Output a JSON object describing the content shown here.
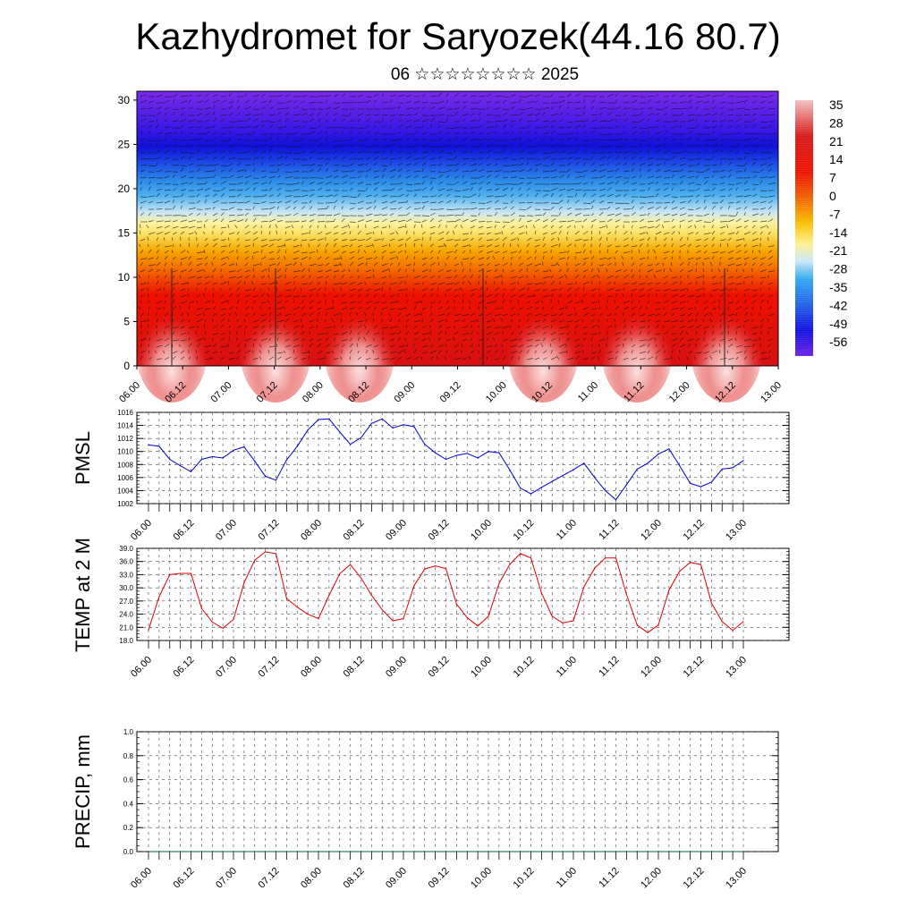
{
  "title": "Kazhydromet for Saryozek(44.16 80.7)",
  "subtitle": "06 ☆☆☆☆☆☆☆☆ 2025",
  "time_labels": [
    "06.00",
    "06.12",
    "07.00",
    "07.12",
    "08.00",
    "08.12",
    "09.00",
    "09.12",
    "10.00",
    "10.12",
    "11.00",
    "11.12",
    "12.00",
    "12.12",
    "13.00"
  ],
  "colors": {
    "pmsl_line": "#0000cc",
    "temp_line": "#dd0000",
    "precip_line": "#006633",
    "colorbar_top": "#f2c0c0",
    "colorbar_bottom": "#6a20e8"
  },
  "chart_data": [
    {
      "type": "heatmap",
      "title": "",
      "ylim": [
        0,
        31
      ],
      "y_ticks": [
        "0",
        "5",
        "10",
        "15",
        "20",
        "25",
        "30"
      ],
      "x_ticks": [
        "06.00",
        "06.12",
        "07.00",
        "07.12",
        "08.00",
        "08.12",
        "09.00",
        "09.12",
        "10.00",
        "10.12",
        "11.00",
        "11.12",
        "12.00",
        "12.12",
        "13.00"
      ],
      "colorbar_labels": [
        "35",
        "28",
        "21",
        "14",
        "7",
        "0",
        "-7",
        "-14",
        "-21",
        "-28",
        "-35",
        "-42",
        "-49",
        "-56"
      ],
      "colorbar_range": [
        -56,
        35
      ],
      "overlay": "wind barbs"
    },
    {
      "type": "line",
      "ylabel": "PMSL",
      "ylim": [
        1002,
        1016
      ],
      "y_ticks": [
        "1016",
        "1014",
        "1012",
        "1010",
        "1008",
        "1006",
        "1004",
        "1002"
      ],
      "x_ticks": [
        "06.00",
        "06.12",
        "07.00",
        "07.12",
        "08.00",
        "08.12",
        "09.00",
        "09.12",
        "10.00",
        "10.12",
        "11.00",
        "11.12",
        "12.00",
        "12.12",
        "13.00"
      ],
      "grid": true,
      "x": [
        0,
        1,
        2,
        3,
        4,
        5,
        6,
        7,
        8,
        9,
        10,
        11,
        12,
        13,
        14,
        15,
        16,
        17,
        18,
        19,
        20,
        21,
        22,
        23,
        24,
        25,
        26,
        27,
        28,
        29,
        30,
        31,
        32,
        33,
        34,
        35,
        36,
        37,
        38,
        39,
        40,
        41,
        42,
        43,
        44,
        45,
        46,
        47,
        48,
        49,
        50,
        51,
        52,
        53,
        54,
        55,
        56
      ],
      "values": [
        1011,
        1010.8,
        1008.8,
        1007.8,
        1006.9,
        1008.8,
        1009.2,
        1009,
        1010.2,
        1010.7,
        1008.5,
        1006.2,
        1005.6,
        1008.7,
        1010.8,
        1013.3,
        1014.9,
        1015,
        1013,
        1011.1,
        1012.1,
        1014.3,
        1015,
        1013.6,
        1014.1,
        1013.8,
        1011.1,
        1009.8,
        1008.8,
        1009.4,
        1009.7,
        1009,
        1010,
        1009.8,
        1007.2,
        1004.4,
        1003.5,
        1004.5,
        1005.4,
        1006.3,
        1007.2,
        1008.2,
        1006,
        1004,
        1002.6,
        1004.9,
        1007.3,
        1008.2,
        1009.6,
        1010.4,
        1007.8,
        1005.1,
        1004.6,
        1005.3,
        1007.3,
        1007.5,
        1008.6
      ]
    },
    {
      "type": "line",
      "ylabel": "TEMP at 2 M",
      "ylim": [
        18,
        39
      ],
      "y_ticks": [
        "39.0",
        "36.0",
        "33.0",
        "30.0",
        "27.0",
        "24.0",
        "21.0",
        "18.0"
      ],
      "x_ticks": [
        "06.00",
        "06.12",
        "07.00",
        "07.12",
        "08.00",
        "08.12",
        "09.00",
        "09.12",
        "10.00",
        "10.12",
        "11.00",
        "11.12",
        "12.00",
        "12.12",
        "13.00"
      ],
      "grid": true,
      "x": [
        0,
        1,
        2,
        3,
        4,
        5,
        6,
        7,
        8,
        9,
        10,
        11,
        12,
        13,
        14,
        15,
        16,
        17,
        18,
        19,
        20,
        21,
        22,
        23,
        24,
        25,
        26,
        27,
        28,
        29,
        30,
        31,
        32,
        33,
        34,
        35,
        36,
        37,
        38,
        39,
        40,
        41,
        42,
        43,
        44,
        45,
        46,
        47,
        48,
        49,
        50,
        51,
        52,
        53,
        54,
        55,
        56
      ],
      "values": [
        20.4,
        28,
        33,
        33.3,
        33.3,
        25.3,
        22.2,
        20.8,
        22.8,
        31.2,
        36.3,
        38.2,
        37.8,
        27.6,
        25.6,
        24,
        23,
        28.3,
        33.2,
        35.3,
        32.3,
        28.3,
        25,
        22.5,
        23,
        30.5,
        34.3,
        35,
        34.4,
        26.3,
        23.2,
        21.3,
        23.5,
        31,
        35.3,
        37.8,
        36.8,
        28.8,
        23.5,
        22,
        22.5,
        30.3,
        34.5,
        36.8,
        36.8,
        28.5,
        21.5,
        19.8,
        21.5,
        29.5,
        33.8,
        35.8,
        35.3,
        26.5,
        22.3,
        20.3,
        22.3
      ]
    },
    {
      "type": "line",
      "ylabel": "PRECIP, mm",
      "ylim": [
        0,
        1
      ],
      "y_ticks": [
        "1.0",
        "0.8",
        "0.6",
        "0.4",
        "0.2",
        "0.0"
      ],
      "x_ticks": [
        "06.00",
        "06.12",
        "07.00",
        "07.12",
        "08.00",
        "08.12",
        "09.00",
        "09.12",
        "10.00",
        "10.12",
        "11.00",
        "11.12",
        "12.00",
        "12.12",
        "13.00"
      ],
      "grid": true,
      "values": [
        0,
        0,
        0,
        0,
        0,
        0,
        0,
        0,
        0,
        0,
        0,
        0,
        0,
        0,
        0,
        0,
        0,
        0,
        0,
        0,
        0,
        0,
        0,
        0,
        0,
        0,
        0,
        0,
        0,
        0,
        0,
        0,
        0,
        0,
        0,
        0,
        0,
        0,
        0,
        0,
        0,
        0,
        0,
        0,
        0,
        0,
        0,
        0,
        0,
        0,
        0,
        0,
        0,
        0,
        0,
        0,
        0
      ]
    }
  ]
}
